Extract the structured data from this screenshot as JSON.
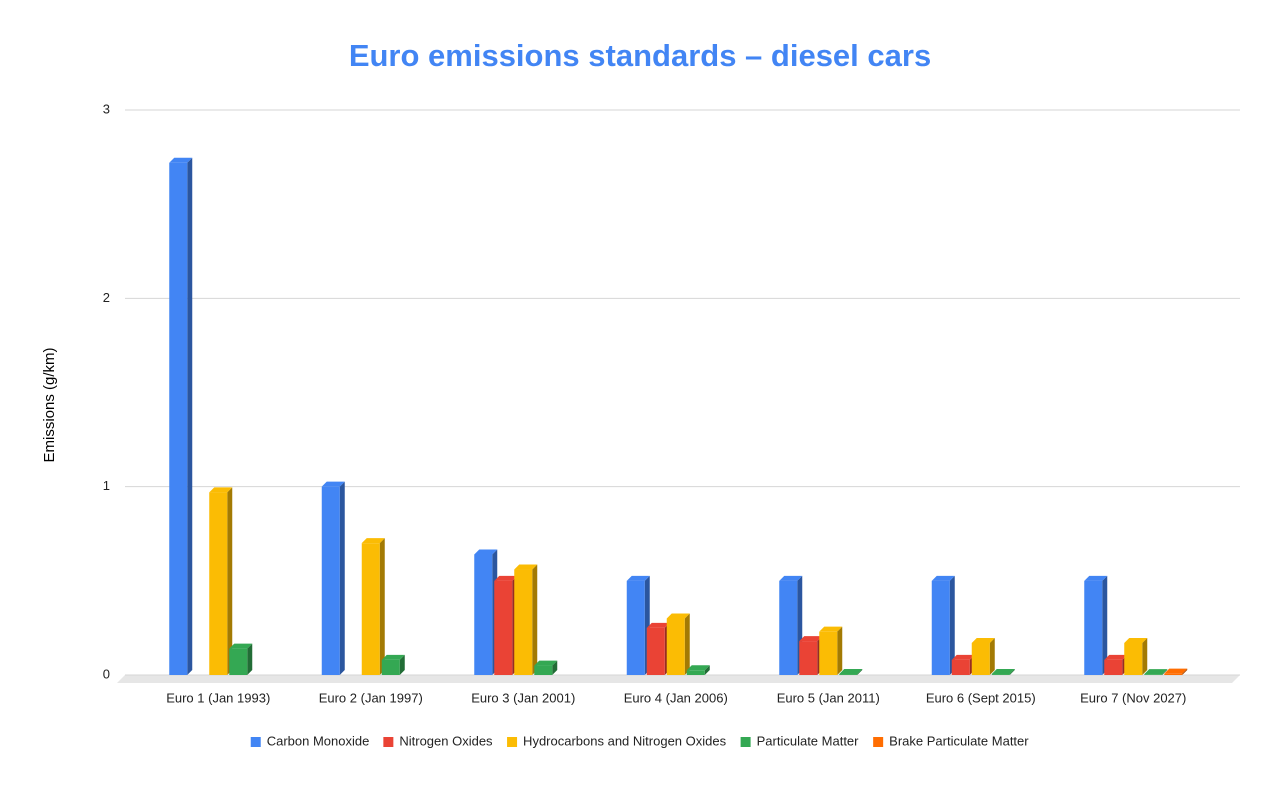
{
  "chart_data": {
    "type": "bar",
    "title": "Euro emissions standards – diesel cars",
    "y_label": "Emissions (g/km)",
    "categories": [
      "Euro 1 (Jan 1993)",
      "Euro 2 (Jan 1997)",
      "Euro 3 (Jan 2001)",
      "Euro 4 (Jan 2006)",
      "Euro 5 (Jan 2011)",
      "Euro 6 (Sept 2015)",
      "Euro 7 (Nov 2027)"
    ],
    "series": [
      {
        "name": "Carbon Monoxide",
        "color": "#4285f4",
        "values": [
          2.72,
          1.0,
          0.64,
          0.5,
          0.5,
          0.5,
          0.5
        ]
      },
      {
        "name": "Nitrogen Oxides",
        "color": "#ea4335",
        "values": [
          null,
          null,
          0.5,
          0.25,
          0.18,
          0.08,
          0.08
        ]
      },
      {
        "name": "Hydrocarbons and Nitrogen Oxides",
        "color": "#fbbc04",
        "values": [
          0.97,
          0.7,
          0.56,
          0.3,
          0.23,
          0.17,
          0.17
        ]
      },
      {
        "name": "Particulate Matter",
        "color": "#34a853",
        "values": [
          0.14,
          0.08,
          0.05,
          0.025,
          0.005,
          0.005,
          0.0045
        ]
      },
      {
        "name": "Brake Particulate Matter",
        "color": "#ff6d01",
        "values": [
          null,
          null,
          null,
          null,
          null,
          null,
          0.007
        ]
      }
    ],
    "ylim": [
      0,
      3
    ],
    "yticks": [
      0,
      1,
      2,
      3
    ],
    "grid": true,
    "legend": "bottom",
    "style_3d": true
  }
}
